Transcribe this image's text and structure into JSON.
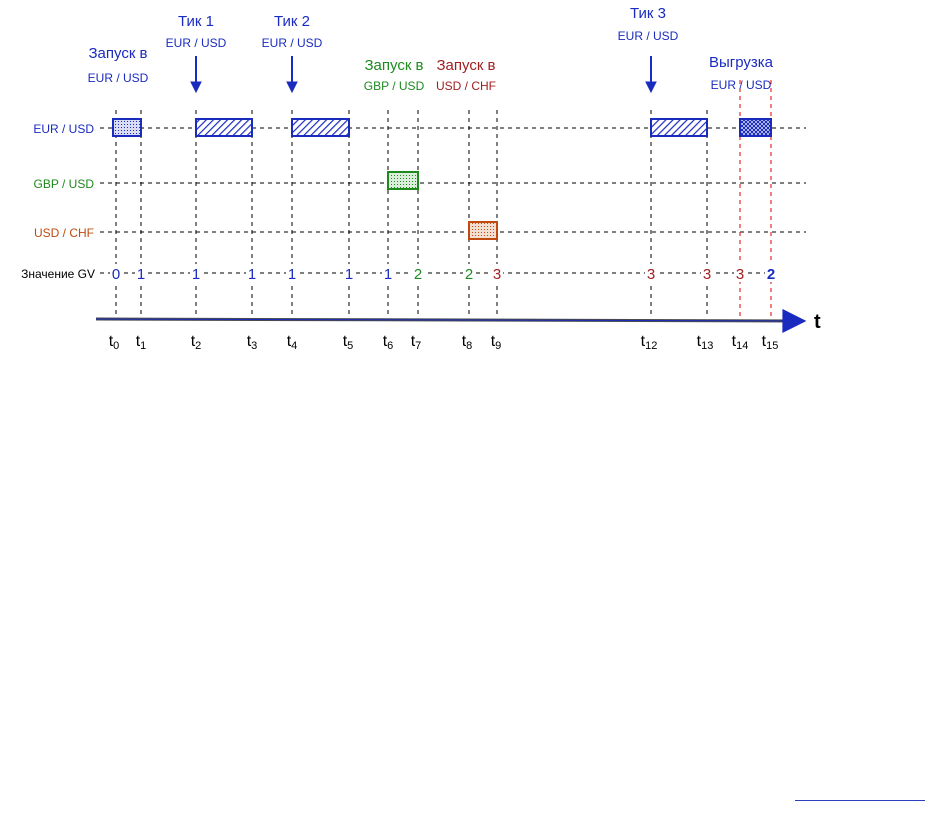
{
  "diagram": {
    "rows": [
      {
        "label": "EUR / USD",
        "color": "#1a2bbf"
      },
      {
        "label": "GBP / USD",
        "color": "#1e8a1e"
      },
      {
        "label": "USD / CHF",
        "color": "#c04a10"
      }
    ],
    "gv_label": "Значение GV",
    "axis_label": "t",
    "events": [
      {
        "line1": "Запуск в",
        "line2": "EUR / USD",
        "color": "#1a2bbf"
      },
      {
        "line1": "Тик 1",
        "line2": "EUR / USD",
        "color": "#1a2bbf"
      },
      {
        "line1": "Тик 2",
        "line2": "EUR / USD",
        "color": "#1a2bbf"
      },
      {
        "line1": "Запуск в",
        "line2": "GBP / USD",
        "color": "#1e8a1e"
      },
      {
        "line1": "Запуск в",
        "line2": "USD / CHF",
        "color": "#a02020"
      },
      {
        "line1": "Тик 3",
        "line2": "EUR / USD",
        "color": "#1a2bbf"
      },
      {
        "line1": "Выгрузка",
        "line2": "EUR / USD",
        "color": "#1a2bbf"
      }
    ],
    "ticks": [
      {
        "base": "t",
        "sub": "0"
      },
      {
        "base": "t",
        "sub": "1"
      },
      {
        "base": "t",
        "sub": "2"
      },
      {
        "base": "t",
        "sub": "3"
      },
      {
        "base": "t",
        "sub": "4"
      },
      {
        "base": "t",
        "sub": "5"
      },
      {
        "base": "t",
        "sub": "6"
      },
      {
        "base": "t",
        "sub": "7"
      },
      {
        "base": "t",
        "sub": "8"
      },
      {
        "base": "t",
        "sub": "9"
      },
      {
        "base": "t",
        "sub": "12"
      },
      {
        "base": "t",
        "sub": "13"
      },
      {
        "base": "t",
        "sub": "14"
      },
      {
        "base": "t",
        "sub": "15"
      }
    ],
    "gv_values": [
      {
        "text": "0",
        "color": "#1a2bbf"
      },
      {
        "text": "1",
        "color": "#1a2bbf"
      },
      {
        "text": "1",
        "color": "#1a2bbf"
      },
      {
        "text": "1",
        "color": "#1a2bbf"
      },
      {
        "text": "1",
        "color": "#1a2bbf"
      },
      {
        "text": "1",
        "color": "#1a2bbf"
      },
      {
        "text": "1",
        "color": "#1a2bbf"
      },
      {
        "text": "2",
        "color": "#1e8a1e"
      },
      {
        "text": "2",
        "color": "#1e8a1e"
      },
      {
        "text": "3",
        "color": "#a02020"
      },
      {
        "text": "3",
        "color": "#a02020"
      },
      {
        "text": "3",
        "color": "#a02020"
      },
      {
        "text": "3",
        "color": "#a02020"
      },
      {
        "text": "2",
        "color": "#1a2bbf"
      }
    ],
    "colors": {
      "eur": "#1a2bbf",
      "gbp": "#1e8a1e",
      "chf": "#c04a10",
      "red_marker": "#e00000"
    }
  }
}
